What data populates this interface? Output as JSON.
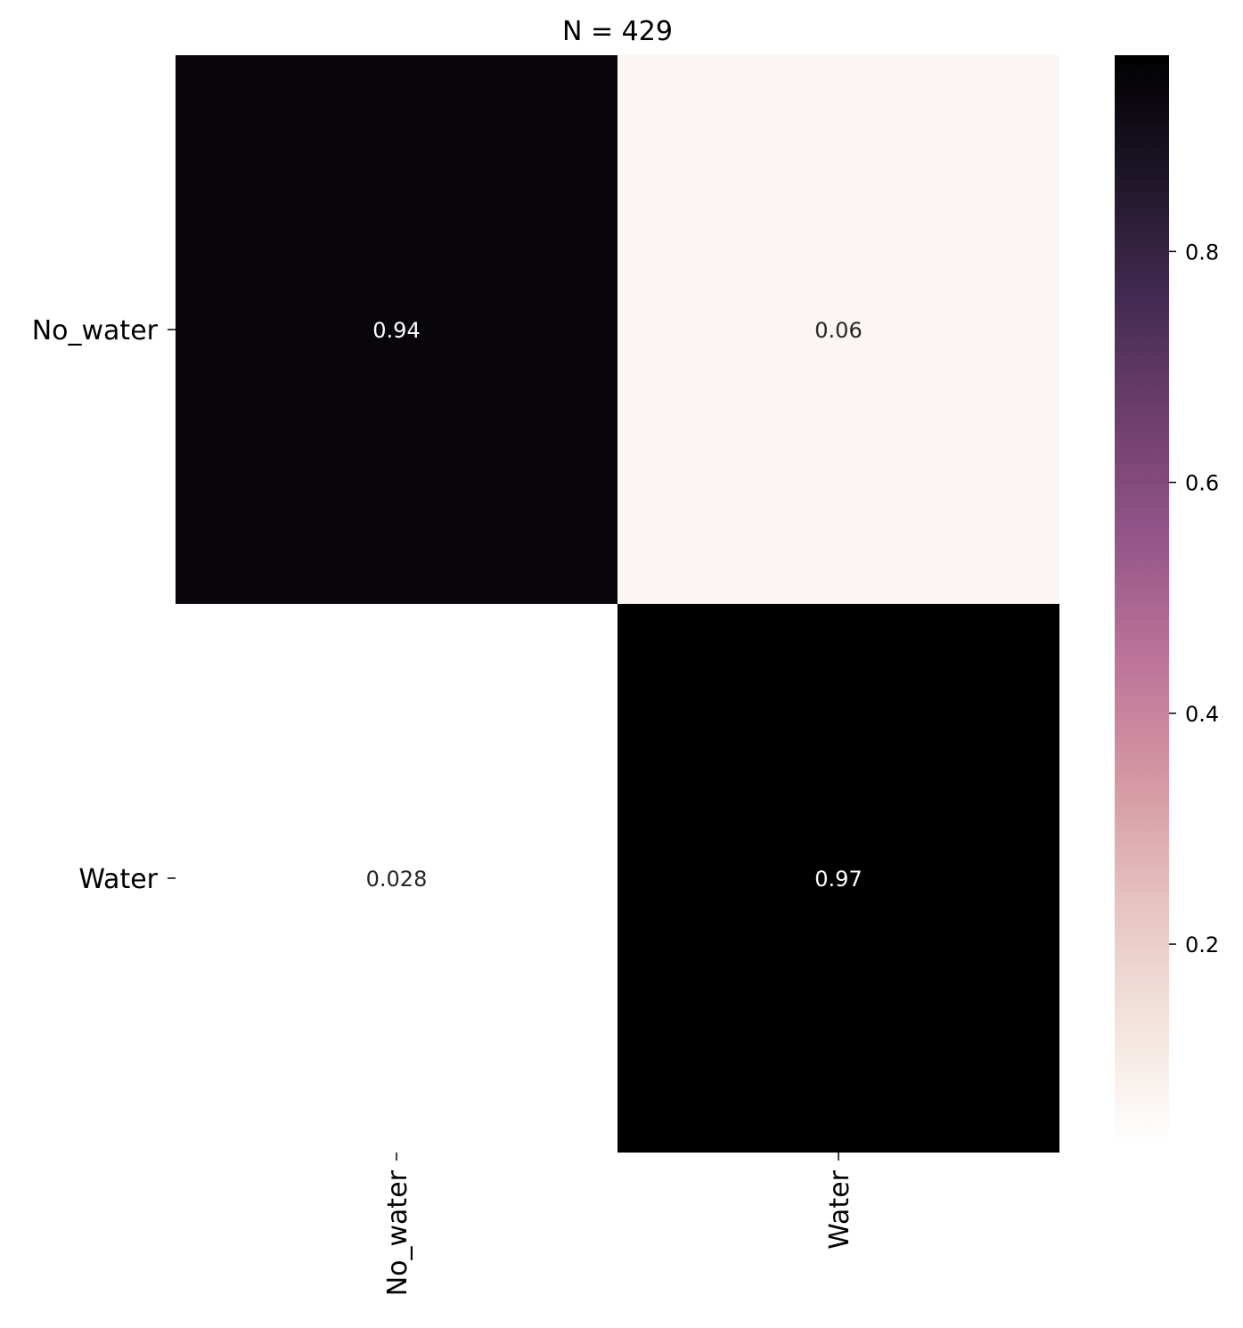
{
  "chart_data": {
    "type": "heatmap",
    "title": "N = 429",
    "row_labels": [
      "No_water",
      "Water"
    ],
    "col_labels": [
      "No_water",
      "Water"
    ],
    "values": [
      [
        0.94,
        0.06
      ],
      [
        0.028,
        0.97
      ]
    ],
    "cell_labels": [
      [
        "0.94",
        "0.06"
      ],
      [
        "0.028",
        "0.97"
      ]
    ],
    "colorbar": {
      "range": [
        0.028,
        0.97
      ],
      "ticks": [
        0.2,
        0.4,
        0.6,
        0.8
      ],
      "tick_labels": [
        "0.2",
        "0.4",
        "0.6",
        "0.8"
      ],
      "colormap": [
        "#ffffff",
        "#f3e3dc",
        "#e6c2c0",
        "#d597a3",
        "#bc7498",
        "#95558a",
        "#6e3f6c",
        "#432a52",
        "#1e1628",
        "#000000"
      ]
    },
    "xlabel": "",
    "ylabel": "",
    "grid": false,
    "legend": "colorbar-right"
  }
}
